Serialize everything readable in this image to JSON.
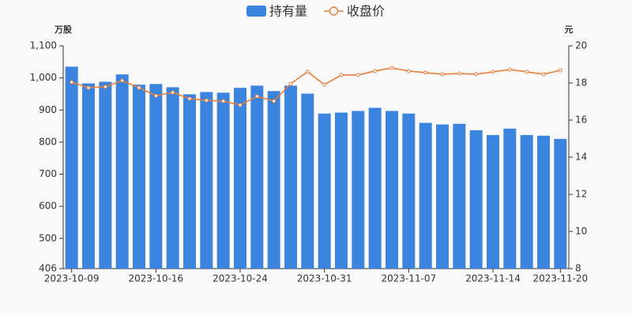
{
  "chart_data": {
    "type": "bar-line",
    "categories": [
      "2023-10-09",
      null,
      null,
      null,
      null,
      "2023-10-16",
      null,
      null,
      null,
      null,
      "2023-10-24",
      null,
      null,
      null,
      null,
      "2023-10-31",
      null,
      null,
      null,
      null,
      "2023-11-07",
      null,
      null,
      null,
      null,
      "2023-11-14",
      null,
      null,
      null,
      "2023-11-20"
    ],
    "series": [
      {
        "name": "持有量",
        "type": "bar",
        "color": "#3a84e0",
        "values": [
          1035,
          983,
          988,
          1011,
          979,
          981,
          971,
          949,
          956,
          954,
          969,
          976,
          959,
          976,
          951,
          889,
          892,
          897,
          907,
          897,
          889,
          860,
          855,
          857,
          837,
          822,
          842,
          822,
          820,
          810
        ]
      },
      {
        "name": "收盘价",
        "type": "line",
        "axis": "y2",
        "color": "#e87e3c",
        "values": [
          18.04,
          17.74,
          17.79,
          18.13,
          17.74,
          17.31,
          17.49,
          17.15,
          17.06,
          17.02,
          16.81,
          17.28,
          17.02,
          17.96,
          18.6,
          17.91,
          18.43,
          18.43,
          18.64,
          18.81,
          18.64,
          18.55,
          18.47,
          18.51,
          18.47,
          18.6,
          18.72,
          18.6,
          18.47,
          18.68
        ]
      }
    ],
    "y_axis_label": "万股",
    "y2_axis_label": "元",
    "ylim": [
      406,
      1100
    ],
    "yticks": [
      406,
      500,
      600,
      700,
      800,
      900,
      {
        "value": 1000,
        "label": "1,000"
      },
      {
        "value": 1100,
        "label": "1,100"
      }
    ],
    "y2lim": [
      8,
      20
    ],
    "y2ticks": [
      8,
      10,
      12,
      14,
      16,
      18,
      20
    ],
    "grid": false,
    "legend": "top"
  }
}
